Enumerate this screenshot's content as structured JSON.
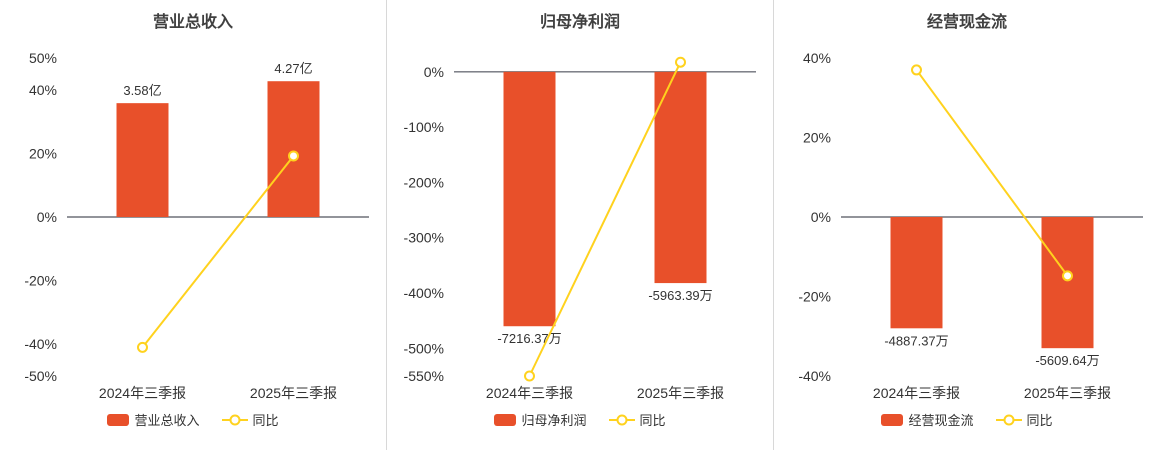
{
  "page": {
    "background": "#ffffff",
    "divider_color": "#d8d8d8"
  },
  "chart_data": [
    {
      "type": "bar",
      "title": "营业总收入",
      "categories": [
        "2024年三季报",
        "2025年三季报"
      ],
      "bar_series": {
        "name": "营业总收入",
        "labels": [
          "3.58亿",
          "4.27亿"
        ],
        "plotted_pct": [
          35.8,
          42.7
        ],
        "label_position": "above"
      },
      "line_series": {
        "name": "同比",
        "plotted_pct": [
          -41,
          19.2
        ]
      },
      "y_ticks": [
        50,
        40,
        20,
        0,
        -20,
        -40,
        -50
      ],
      "ylim": [
        -50,
        50
      ],
      "bar_color": "#e8502a",
      "line_color": "#ffd21e",
      "legend_position": "bottom",
      "grid": "off"
    },
    {
      "type": "bar",
      "title": "归母净利润",
      "categories": [
        "2024年三季报",
        "2025年三季报"
      ],
      "bar_series": {
        "name": "归母净利润",
        "labels": [
          "-7216.37万",
          "-5963.39万"
        ],
        "plotted_pct": [
          -460,
          -382
        ],
        "label_position": "below"
      },
      "line_series": {
        "name": "同比",
        "plotted_pct": [
          -550,
          17.4
        ]
      },
      "y_ticks": [
        0,
        -100,
        -200,
        -300,
        -400,
        -500,
        -550
      ],
      "ylim": [
        -550,
        25
      ],
      "bar_color": "#e8502a",
      "line_color": "#ffd21e",
      "legend_position": "bottom",
      "grid": "off"
    },
    {
      "type": "bar",
      "title": "经营现金流",
      "categories": [
        "2024年三季报",
        "2025年三季报"
      ],
      "bar_series": {
        "name": "经营现金流",
        "labels": [
          "-4887.37万",
          "-5609.64万"
        ],
        "plotted_pct": [
          -28,
          -33
        ],
        "label_position": "below"
      },
      "line_series": {
        "name": "同比",
        "plotted_pct": [
          37,
          -14.8
        ]
      },
      "y_ticks": [
        40,
        20,
        0,
        -20,
        -40
      ],
      "ylim": [
        -40,
        40
      ],
      "bar_color": "#e8502a",
      "line_color": "#ffd21e",
      "legend_position": "bottom",
      "grid": "off"
    }
  ]
}
